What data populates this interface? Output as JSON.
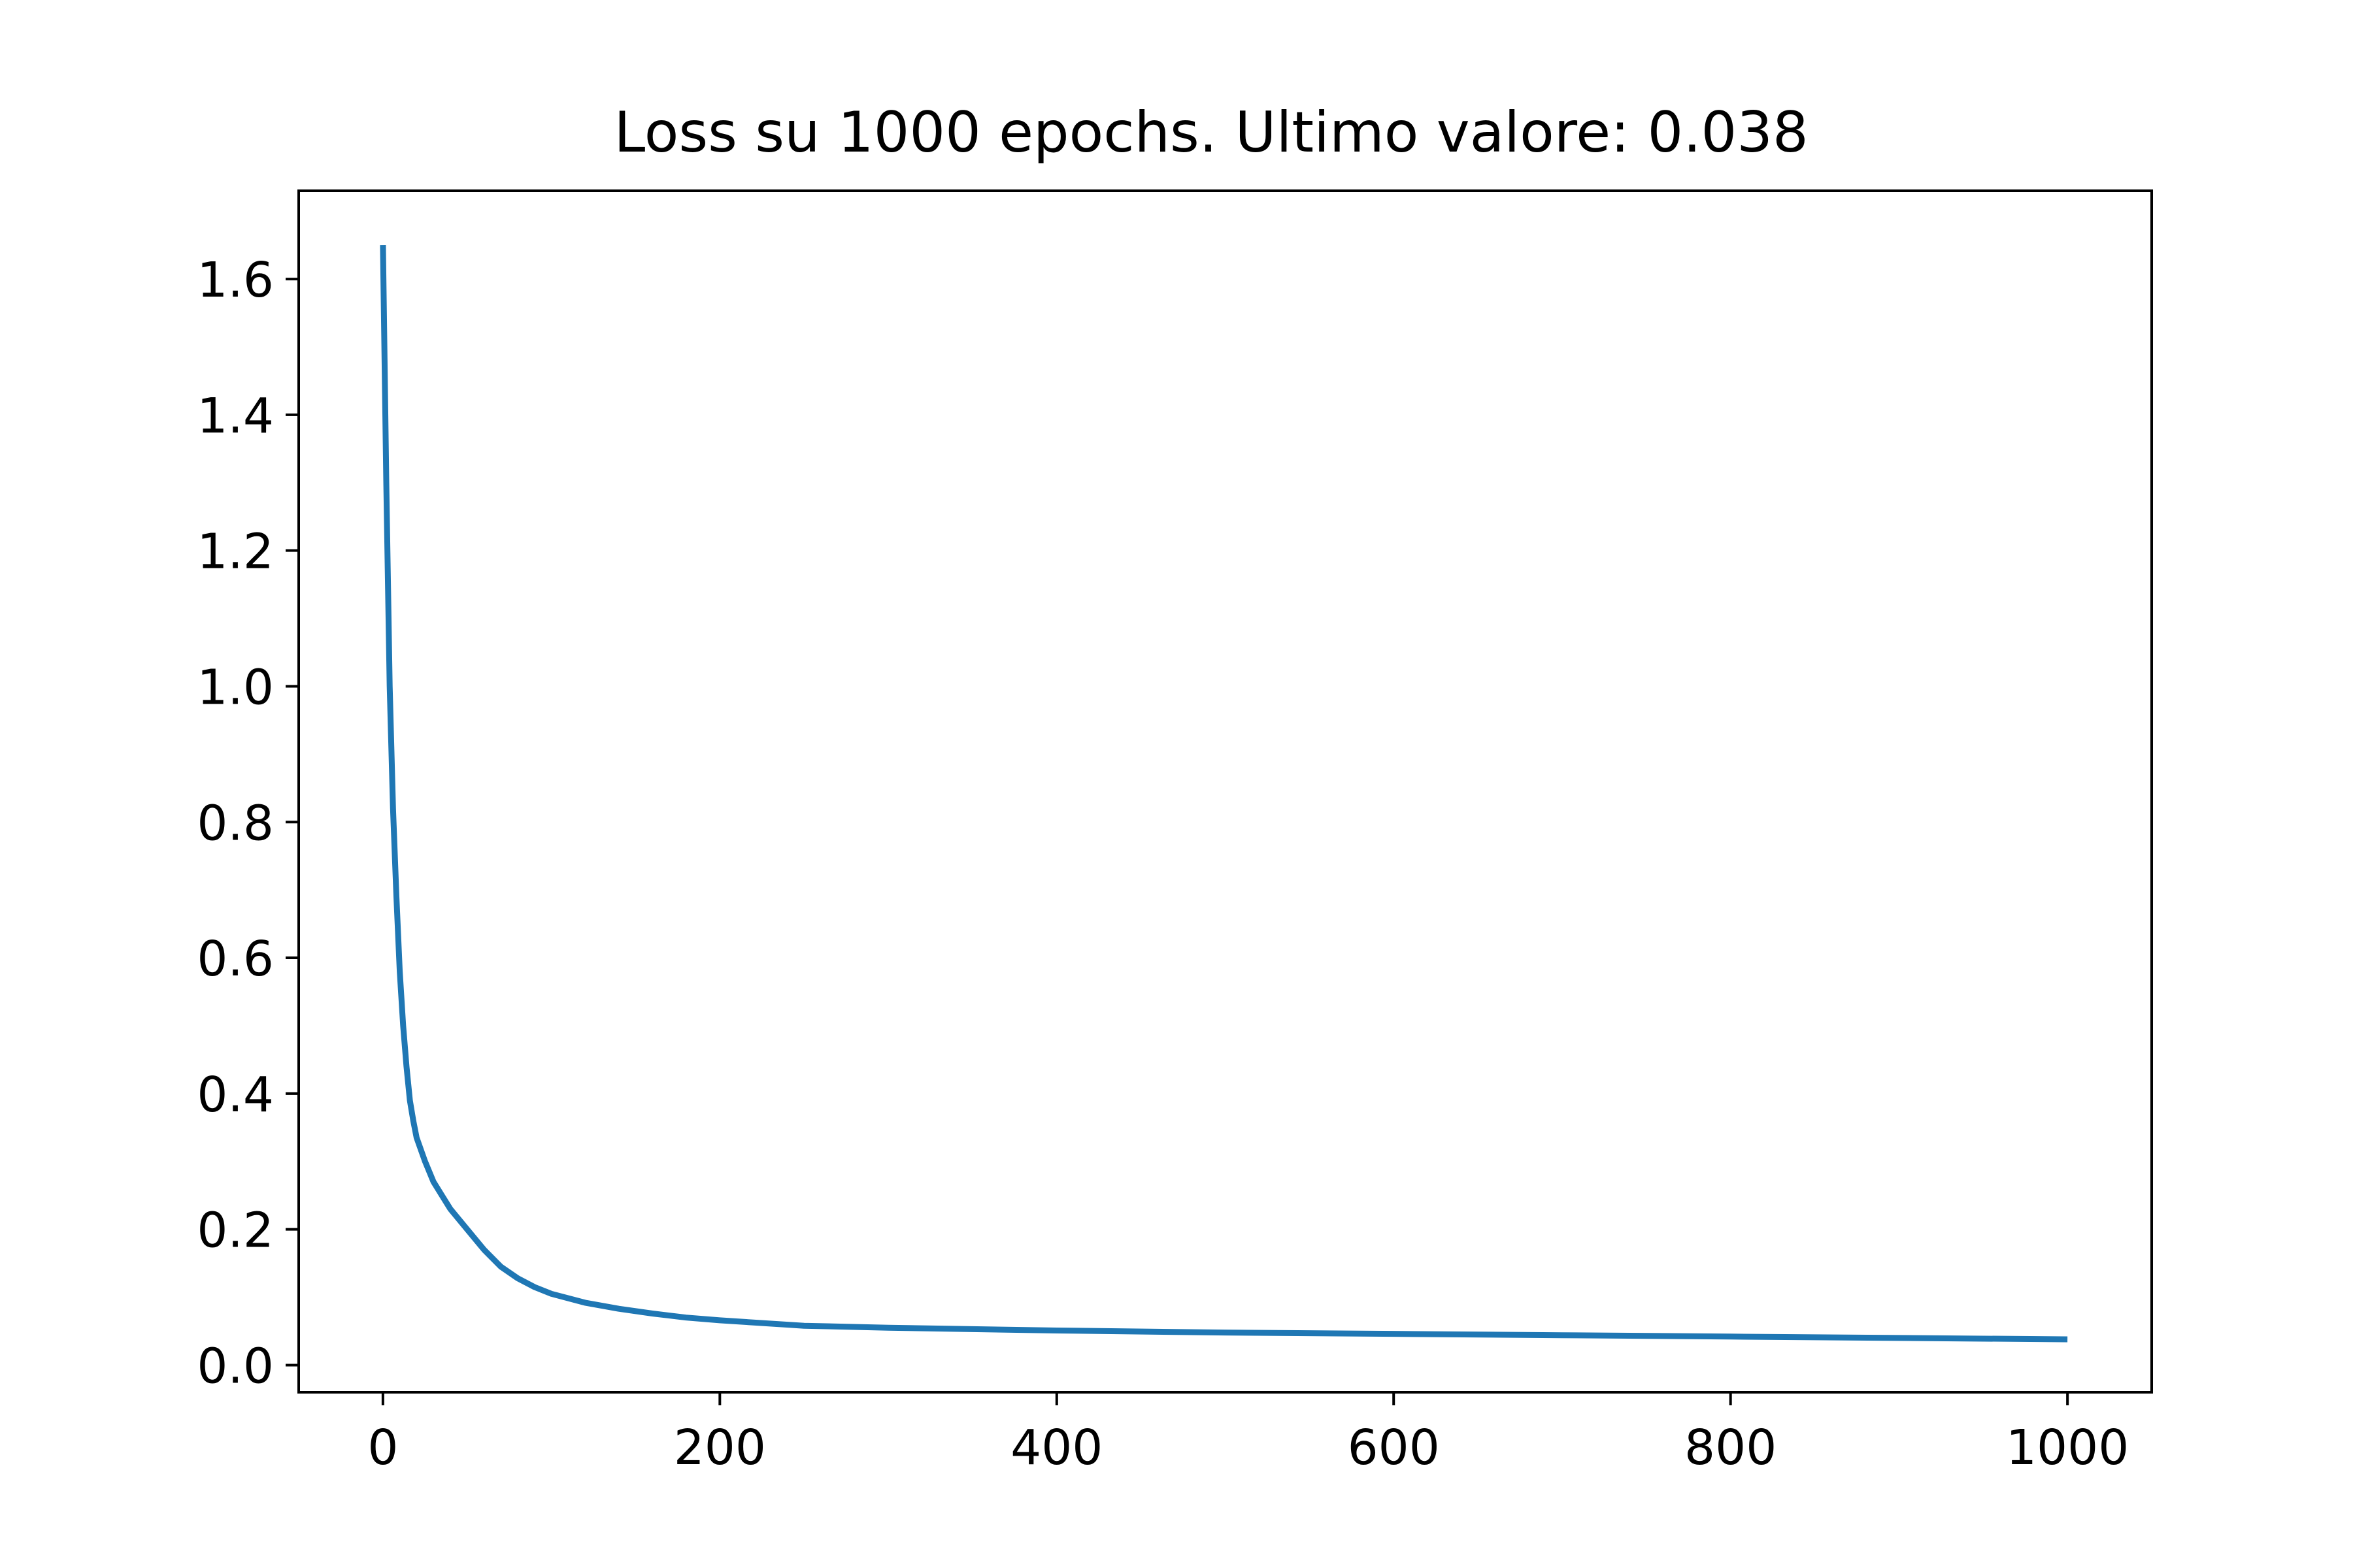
{
  "chart_data": {
    "type": "line",
    "title": "Loss su 1000 epochs. Ultimo valore: 0.038",
    "xlabel": "",
    "ylabel": "",
    "xlim": [
      -50,
      1050
    ],
    "ylim": [
      -0.04,
      1.73
    ],
    "grid": false,
    "x_ticks": [
      0,
      200,
      400,
      600,
      800,
      1000
    ],
    "x_tick_labels": [
      "0",
      "200",
      "400",
      "600",
      "800",
      "1000"
    ],
    "y_ticks": [
      0.0,
      0.2,
      0.4,
      0.6,
      0.8,
      1.0,
      1.2,
      1.4,
      1.6
    ],
    "y_tick_labels": [
      "0.0",
      "0.2",
      "0.4",
      "0.6",
      "0.8",
      "1.0",
      "1.2",
      "1.4",
      "1.6"
    ],
    "series": [
      {
        "name": "loss",
        "color": "#1f77b4",
        "x": [
          0,
          2,
          4,
          6,
          8,
          10,
          12,
          14,
          16,
          18,
          20,
          25,
          30,
          35,
          40,
          50,
          60,
          70,
          80,
          90,
          100,
          120,
          140,
          160,
          180,
          200,
          250,
          300,
          400,
          500,
          600,
          700,
          800,
          900,
          1000
        ],
        "y": [
          1.65,
          1.3,
          1.0,
          0.82,
          0.69,
          0.58,
          0.5,
          0.44,
          0.39,
          0.36,
          0.335,
          0.3,
          0.27,
          0.25,
          0.23,
          0.2,
          0.17,
          0.145,
          0.128,
          0.115,
          0.105,
          0.092,
          0.083,
          0.076,
          0.07,
          0.066,
          0.058,
          0.055,
          0.051,
          0.048,
          0.046,
          0.044,
          0.042,
          0.04,
          0.038
        ]
      }
    ]
  }
}
